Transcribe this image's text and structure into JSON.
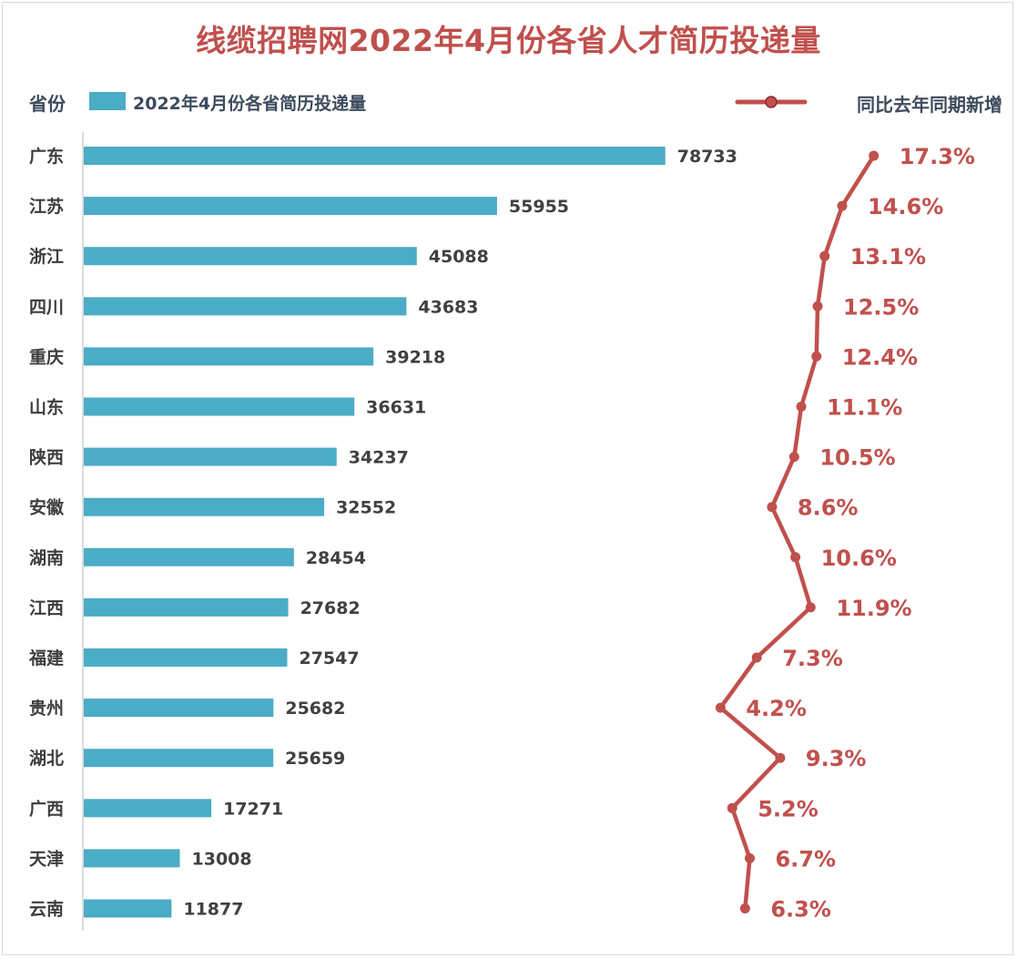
{
  "chart_data": {
    "type": "bar",
    "title": "线缆招聘网2022年4月份各省人才简历投递量",
    "category_header": "省份",
    "categories": [
      "广东",
      "江苏",
      "浙江",
      "四川",
      "重庆",
      "山东",
      "陕西",
      "安徽",
      "湖南",
      "江西",
      "福建",
      "贵州",
      "湖北",
      "广西",
      "天津",
      "云南"
    ],
    "series": [
      {
        "name": "2022年4月份各省简历投递量",
        "type": "bar",
        "color": "#4bacc6",
        "values": [
          78733,
          55955,
          45088,
          43683,
          39218,
          36631,
          34237,
          32552,
          28454,
          27682,
          27547,
          25682,
          25659,
          17271,
          13008,
          11877
        ]
      },
      {
        "name": "同比去年同期新增",
        "type": "line",
        "color": "#c0504d",
        "values": [
          17.3,
          14.6,
          13.1,
          12.5,
          12.4,
          11.1,
          10.5,
          8.6,
          10.6,
          11.9,
          7.3,
          4.2,
          9.3,
          5.2,
          6.7,
          6.3
        ],
        "labels": [
          "17.3%",
          "14.6%",
          "13.1%",
          "12.5%",
          "12.4%",
          "11.1%",
          "10.5%",
          "8.6%",
          "10.6%",
          "11.9%",
          "7.3%",
          "4.2%",
          "9.3%",
          "5.2%",
          "6.7%",
          "6.3%"
        ]
      }
    ],
    "orientation": "horizontal",
    "legend_position": "top",
    "grid": false
  }
}
